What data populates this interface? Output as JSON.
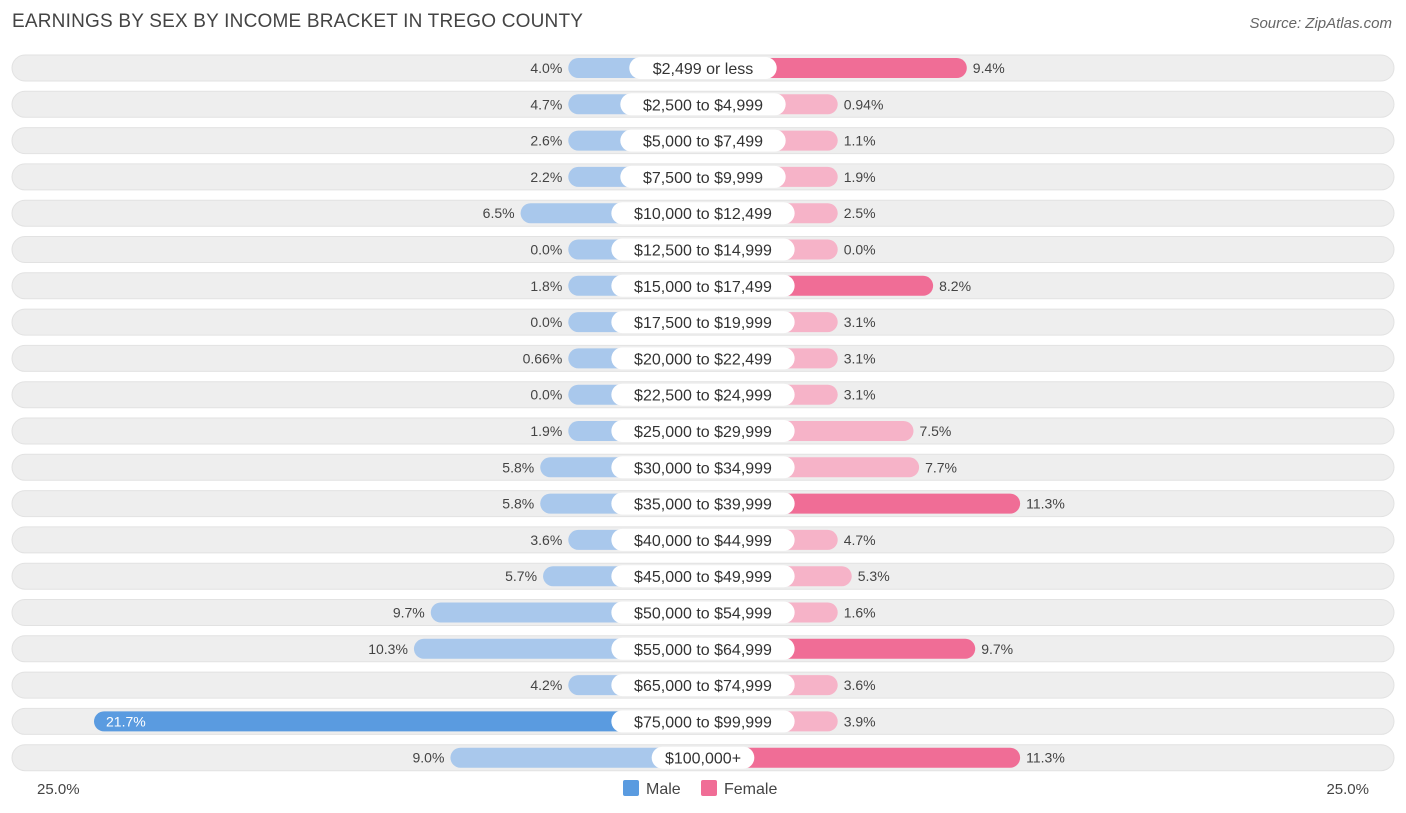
{
  "title": "EARNINGS BY SEX BY INCOME BRACKET IN TREGO COUNTY",
  "source": "Source: ZipAtlas.com",
  "colors": {
    "male_base": "#a9c8ec",
    "male_strong": "#5a9be0",
    "female_base": "#f6b3c8",
    "female_strong": "#f06d96",
    "row_bg": "#eeeeee"
  },
  "chart_data": {
    "type": "bar",
    "orientation": "horizontal-diverging",
    "categories": [
      "$2,499 or less",
      "$2,500 to $4,999",
      "$5,000 to $7,499",
      "$7,500 to $9,999",
      "$10,000 to $12,499",
      "$12,500 to $14,999",
      "$15,000 to $17,499",
      "$17,500 to $19,999",
      "$20,000 to $22,499",
      "$22,500 to $24,999",
      "$25,000 to $29,999",
      "$30,000 to $34,999",
      "$35,000 to $39,999",
      "$40,000 to $44,999",
      "$45,000 to $49,999",
      "$50,000 to $54,999",
      "$55,000 to $64,999",
      "$65,000 to $74,999",
      "$75,000 to $99,999",
      "$100,000+"
    ],
    "series": [
      {
        "name": "Male",
        "values": [
          4.0,
          4.7,
          2.6,
          2.2,
          6.5,
          0.0,
          1.8,
          0.0,
          0.66,
          0.0,
          1.9,
          5.8,
          5.8,
          3.6,
          5.7,
          9.7,
          10.3,
          4.2,
          21.7,
          9.0
        ],
        "labels": [
          "4.0%",
          "4.7%",
          "2.6%",
          "2.2%",
          "6.5%",
          "0.0%",
          "1.8%",
          "0.0%",
          "0.66%",
          "0.0%",
          "1.9%",
          "5.8%",
          "5.8%",
          "3.6%",
          "5.7%",
          "9.7%",
          "10.3%",
          "4.2%",
          "21.7%",
          "9.0%"
        ]
      },
      {
        "name": "Female",
        "values": [
          9.4,
          0.94,
          1.1,
          1.9,
          2.5,
          0.0,
          8.2,
          3.1,
          3.1,
          3.1,
          7.5,
          7.7,
          11.3,
          4.7,
          5.3,
          1.6,
          9.7,
          3.6,
          3.9,
          11.3
        ],
        "labels": [
          "9.4%",
          "0.94%",
          "1.1%",
          "1.9%",
          "2.5%",
          "0.0%",
          "8.2%",
          "3.1%",
          "3.1%",
          "3.1%",
          "7.5%",
          "7.7%",
          "11.3%",
          "4.7%",
          "5.3%",
          "1.6%",
          "9.7%",
          "3.6%",
          "3.9%",
          "11.3%"
        ]
      }
    ],
    "xlim": [
      -25.0,
      25.0
    ],
    "axis_labels": {
      "left": "25.0%",
      "right": "25.0%"
    },
    "legend": {
      "position": "bottom-center",
      "entries": [
        "Male",
        "Female"
      ]
    }
  }
}
